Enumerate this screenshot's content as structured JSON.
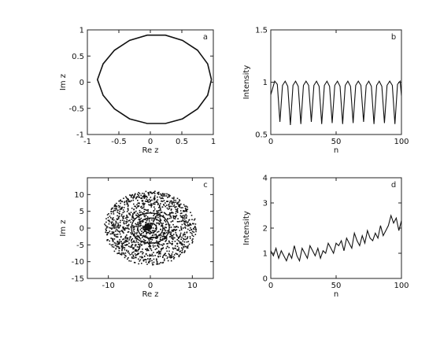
{
  "chart_data": [
    {
      "type": "line",
      "panel_label": "a",
      "xlabel": "Re z",
      "ylabel": "Im z",
      "xlim": [
        -1,
        1
      ],
      "ylim": [
        -1,
        1
      ],
      "xticks": [
        -1,
        -0.5,
        0,
        0.5,
        1
      ],
      "yticks": [
        -1,
        -0.5,
        0,
        0.5,
        1
      ],
      "xtick_labels": [
        "-1",
        "-0.5",
        "0",
        "0.5",
        "1"
      ],
      "ytick_labels": [
        "-1",
        "-0.5",
        "0",
        "0.5",
        "1"
      ],
      "grid": false,
      "series": [
        {
          "x": [
            0.97,
            0.91,
            0.75,
            0.51,
            0.24,
            -0.05,
            -0.33,
            -0.57,
            -0.75,
            -0.84,
            -0.84,
            -0.75,
            -0.57,
            -0.33,
            -0.05,
            0.24,
            0.51,
            0.75,
            0.91,
            0.97
          ],
          "y": [
            0.05,
            0.35,
            0.61,
            0.8,
            0.9,
            0.9,
            0.8,
            0.61,
            0.35,
            0.05,
            0.05,
            -0.25,
            -0.51,
            -0.7,
            -0.79,
            -0.79,
            -0.7,
            -0.51,
            -0.25,
            0.05
          ]
        }
      ]
    },
    {
      "type": "line",
      "panel_label": "b",
      "xlabel": "n",
      "ylabel": "Intensity",
      "xlim": [
        0,
        100
      ],
      "ylim": [
        0.5,
        1.5
      ],
      "xticks": [
        0,
        50,
        100
      ],
      "yticks": [
        0.5,
        1,
        1.5
      ],
      "xtick_labels": [
        "0",
        "50",
        "100"
      ],
      "ytick_labels": [
        "0.5",
        "1",
        "1.5"
      ],
      "grid": false,
      "series": [
        {
          "x": [
            0,
            3,
            5,
            7,
            9,
            11,
            13,
            15,
            17,
            19,
            21,
            23,
            25,
            27,
            29,
            31,
            33,
            35,
            37,
            39,
            41,
            43,
            45,
            47,
            49,
            51,
            53,
            55,
            57,
            59,
            61,
            63,
            65,
            67,
            69,
            71,
            73,
            75,
            77,
            79,
            81,
            83,
            85,
            87,
            89,
            91,
            93,
            95,
            97,
            99,
            100
          ],
          "y": [
            0.88,
            1.01,
            0.98,
            0.62,
            0.97,
            1.01,
            0.96,
            0.59,
            0.97,
            1.01,
            0.96,
            0.6,
            0.97,
            1.01,
            0.97,
            0.62,
            0.97,
            1.01,
            0.96,
            0.6,
            0.97,
            1.01,
            0.96,
            0.61,
            0.97,
            1.01,
            0.96,
            0.6,
            0.97,
            1.01,
            0.96,
            0.61,
            0.97,
            1.01,
            0.97,
            0.62,
            0.97,
            1.01,
            0.96,
            0.6,
            0.97,
            1.01,
            0.96,
            0.61,
            0.97,
            1.01,
            0.97,
            0.6,
            0.98,
            1.01,
            0.87
          ]
        }
      ]
    },
    {
      "type": "scatter",
      "panel_label": "c",
      "xlabel": "Re z",
      "ylabel": "Im z",
      "xlim": [
        -15,
        15
      ],
      "ylim": [
        -15,
        15
      ],
      "xticks": [
        -10,
        0,
        10
      ],
      "yticks": [
        -15,
        -10,
        -5,
        0,
        5,
        10
      ],
      "xtick_labels": [
        "-10",
        "0",
        "10"
      ],
      "ytick_labels": [
        "-15",
        "-10",
        "-5",
        "0",
        "5",
        "10"
      ],
      "grid": false,
      "cloud": {
        "center": [
          0,
          0
        ],
        "radius_x": 11,
        "radius_y": 11,
        "point_count": 1400
      }
    },
    {
      "type": "line",
      "panel_label": "d",
      "xlabel": "n",
      "ylabel": "Intensity",
      "xlim": [
        0,
        100
      ],
      "ylim": [
        0,
        4
      ],
      "xticks": [
        0,
        50,
        100
      ],
      "yticks": [
        0,
        1,
        2,
        3,
        4
      ],
      "xtick_labels": [
        "0",
        "50",
        "100"
      ],
      "ytick_labels": [
        "0",
        "1",
        "2",
        "3",
        "4"
      ],
      "grid": false,
      "series": [
        {
          "x": [
            0,
            2,
            4,
            6,
            8,
            10,
            12,
            14,
            16,
            18,
            20,
            22,
            24,
            26,
            28,
            30,
            32,
            34,
            36,
            38,
            40,
            42,
            44,
            46,
            48,
            50,
            52,
            54,
            56,
            58,
            60,
            62,
            64,
            66,
            68,
            70,
            72,
            74,
            76,
            78,
            80,
            82,
            84,
            86,
            88,
            90,
            92,
            94,
            96,
            98,
            100
          ],
          "y": [
            1.1,
            0.9,
            1.2,
            0.8,
            1.1,
            0.9,
            0.7,
            1.0,
            0.8,
            1.3,
            0.9,
            0.7,
            1.2,
            1.0,
            0.8,
            1.3,
            1.1,
            0.9,
            1.2,
            0.8,
            1.1,
            1.0,
            1.4,
            1.2,
            1.0,
            1.4,
            1.3,
            1.5,
            1.1,
            1.6,
            1.4,
            1.2,
            1.8,
            1.5,
            1.3,
            1.7,
            1.4,
            1.9,
            1.6,
            1.5,
            1.8,
            1.6,
            2.1,
            1.7,
            1.9,
            2.1,
            2.5,
            2.2,
            2.4,
            1.9,
            2.3
          ]
        }
      ]
    }
  ]
}
